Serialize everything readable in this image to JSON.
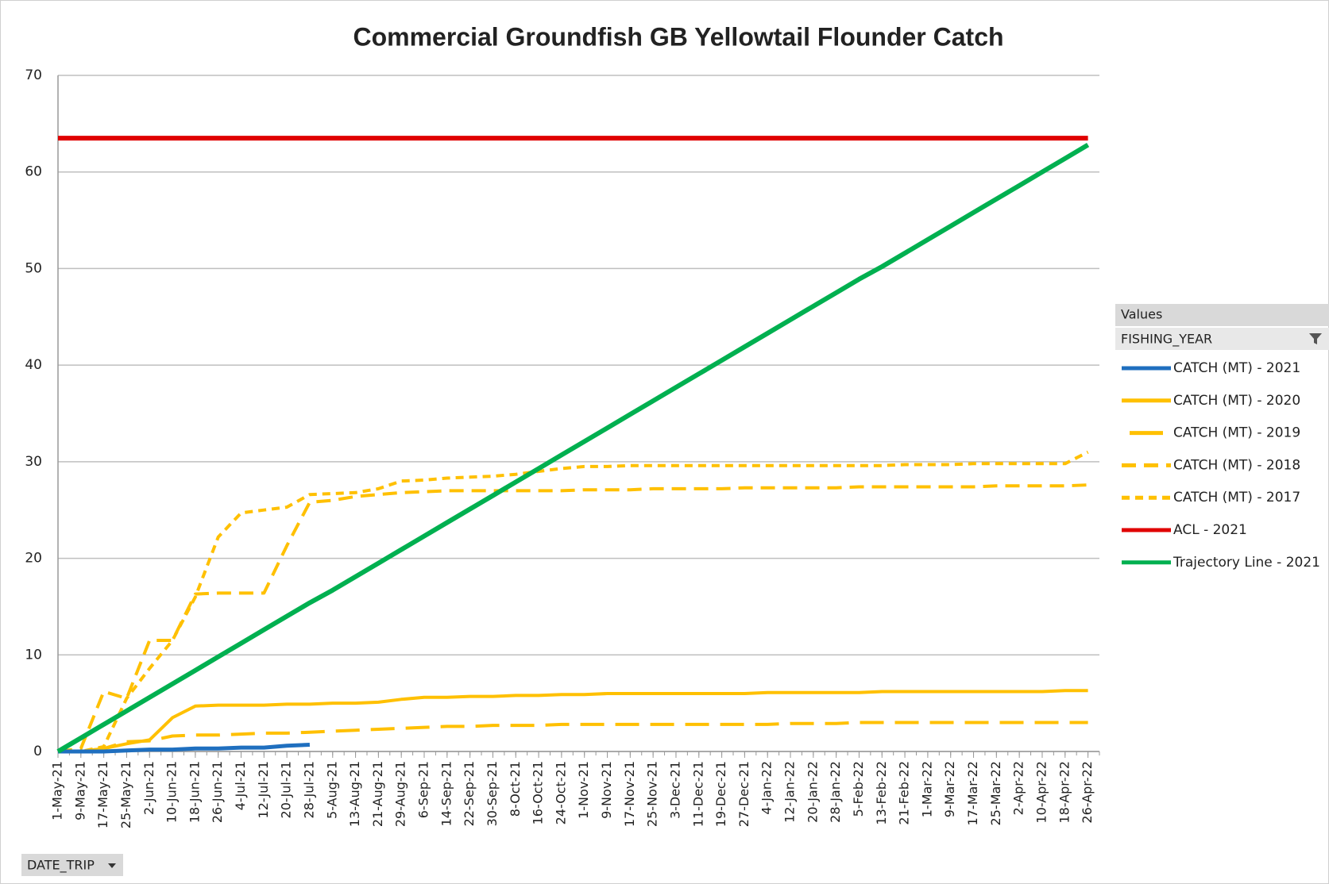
{
  "chart_data": {
    "type": "line",
    "title": "Commercial Groundfish GB Yellowtail Flounder Catch",
    "legend_header": "Values",
    "filter_field": "FISHING_YEAR",
    "axis_field": "DATE_TRIP",
    "legend": "right",
    "grid": true,
    "ylim": [
      0,
      70
    ],
    "yticks": [
      0,
      10,
      20,
      30,
      40,
      50,
      60,
      70
    ],
    "categories": [
      "1-May-21",
      "9-May-21",
      "17-May-21",
      "25-May-21",
      "2-Jun-21",
      "10-Jun-21",
      "18-Jun-21",
      "26-Jun-21",
      "4-Jul-21",
      "12-Jul-21",
      "20-Jul-21",
      "28-Jul-21",
      "5-Aug-21",
      "13-Aug-21",
      "21-Aug-21",
      "29-Aug-21",
      "6-Sep-21",
      "14-Sep-21",
      "22-Sep-21",
      "30-Sep-21",
      "8-Oct-21",
      "16-Oct-21",
      "24-Oct-21",
      "1-Nov-21",
      "9-Nov-21",
      "17-Nov-21",
      "25-Nov-21",
      "3-Dec-21",
      "11-Dec-21",
      "19-Dec-21",
      "27-Dec-21",
      "4-Jan-22",
      "12-Jan-22",
      "20-Jan-22",
      "28-Jan-22",
      "5-Feb-22",
      "13-Feb-22",
      "21-Feb-22",
      "1-Mar-22",
      "9-Mar-22",
      "17-Mar-22",
      "25-Mar-22",
      "2-Apr-22",
      "10-Apr-22",
      "18-Apr-22",
      "26-Apr-22"
    ],
    "series": [
      {
        "name": "CATCH (MT) - 2021",
        "color": "#1f6fbf",
        "line_style": "solid",
        "width": 5,
        "values": [
          0,
          0,
          0,
          0.1,
          0.2,
          0.2,
          0.3,
          0.3,
          0.4,
          0.4,
          0.6,
          0.7,
          null,
          null,
          null,
          null,
          null,
          null,
          null,
          null,
          null,
          null,
          null,
          null,
          null,
          null,
          null,
          null,
          null,
          null,
          null,
          null,
          null,
          null,
          null,
          null,
          null,
          null,
          null,
          null,
          null,
          null,
          null,
          null,
          null,
          null
        ]
      },
      {
        "name": "CATCH (MT) - 2020",
        "color": "#ffc000",
        "line_style": "solid",
        "width": 4,
        "values": [
          0,
          0,
          0.3,
          0.8,
          1.2,
          3.5,
          4.7,
          4.8,
          4.8,
          4.8,
          4.9,
          4.9,
          5.0,
          5.0,
          5.1,
          5.4,
          5.6,
          5.6,
          5.7,
          5.7,
          5.8,
          5.8,
          5.9,
          5.9,
          6.0,
          6.0,
          6.0,
          6.0,
          6.0,
          6.0,
          6.0,
          6.1,
          6.1,
          6.1,
          6.1,
          6.1,
          6.2,
          6.2,
          6.2,
          6.2,
          6.2,
          6.2,
          6.2,
          6.2,
          6.3,
          6.3
        ]
      },
      {
        "name": "CATCH (MT) - 2019",
        "color": "#ffc000",
        "line_style": "long-dash",
        "width": 4,
        "values": [
          0,
          0,
          0.3,
          1.0,
          1.1,
          1.6,
          1.7,
          1.7,
          1.8,
          1.9,
          1.9,
          2.0,
          2.1,
          2.2,
          2.3,
          2.4,
          2.5,
          2.6,
          2.6,
          2.7,
          2.7,
          2.7,
          2.8,
          2.8,
          2.8,
          2.8,
          2.8,
          2.8,
          2.8,
          2.8,
          2.8,
          2.8,
          2.9,
          2.9,
          2.9,
          3.0,
          3.0,
          3.0,
          3.0,
          3.0,
          3.0,
          3.0,
          3.0,
          3.0,
          3.0,
          3.0
        ]
      },
      {
        "name": "CATCH (MT) - 2018",
        "color": "#ffc000",
        "line_style": "dash",
        "width": 4,
        "values": [
          0,
          0.3,
          6.2,
          5.5,
          11.5,
          11.5,
          16.3,
          16.4,
          16.4,
          16.4,
          21.3,
          25.8,
          26.0,
          26.4,
          26.6,
          26.8,
          26.9,
          27.0,
          27.0,
          27.0,
          27.0,
          27.0,
          27.0,
          27.1,
          27.1,
          27.1,
          27.2,
          27.2,
          27.2,
          27.2,
          27.3,
          27.3,
          27.3,
          27.3,
          27.3,
          27.4,
          27.4,
          27.4,
          27.4,
          27.4,
          27.4,
          27.5,
          27.5,
          27.5,
          27.5,
          27.6
        ]
      },
      {
        "name": "CATCH (MT) - 2017",
        "color": "#ffc000",
        "line_style": "short-dash",
        "width": 4,
        "values": [
          0,
          0,
          0.5,
          5.5,
          8.6,
          11.5,
          16.0,
          22.2,
          24.7,
          25.0,
          25.3,
          26.6,
          26.7,
          26.8,
          27.2,
          28.0,
          28.1,
          28.3,
          28.4,
          28.5,
          28.7,
          29.0,
          29.3,
          29.5,
          29.5,
          29.6,
          29.6,
          29.6,
          29.6,
          29.6,
          29.6,
          29.6,
          29.6,
          29.6,
          29.6,
          29.6,
          29.6,
          29.7,
          29.7,
          29.7,
          29.8,
          29.8,
          29.8,
          29.8,
          29.8,
          31.0
        ]
      },
      {
        "name": "ACL - 2021",
        "color": "#e00000",
        "line_style": "solid",
        "width": 6,
        "values": [
          63.5,
          63.5,
          63.5,
          63.5,
          63.5,
          63.5,
          63.5,
          63.5,
          63.5,
          63.5,
          63.5,
          63.5,
          63.5,
          63.5,
          63.5,
          63.5,
          63.5,
          63.5,
          63.5,
          63.5,
          63.5,
          63.5,
          63.5,
          63.5,
          63.5,
          63.5,
          63.5,
          63.5,
          63.5,
          63.5,
          63.5,
          63.5,
          63.5,
          63.5,
          63.5,
          63.5,
          63.5,
          63.5,
          63.5,
          63.5,
          63.5,
          63.5,
          63.5,
          63.5,
          63.5,
          63.5
        ]
      },
      {
        "name": "Trajectory Line - 2021",
        "color": "#00b050",
        "line_style": "solid",
        "width": 6,
        "values": [
          0,
          1.4,
          2.8,
          4.2,
          5.6,
          7.0,
          8.4,
          9.8,
          11.2,
          12.6,
          14.0,
          15.4,
          16.7,
          18.1,
          19.5,
          20.9,
          22.3,
          23.7,
          25.1,
          26.5,
          27.9,
          29.3,
          30.7,
          32.1,
          33.5,
          34.9,
          36.3,
          37.7,
          39.1,
          40.5,
          41.9,
          43.3,
          44.7,
          46.1,
          47.5,
          48.9,
          50.2,
          51.6,
          53.0,
          54.4,
          55.8,
          57.2,
          58.6,
          60.0,
          61.4,
          62.8
        ]
      }
    ]
  }
}
